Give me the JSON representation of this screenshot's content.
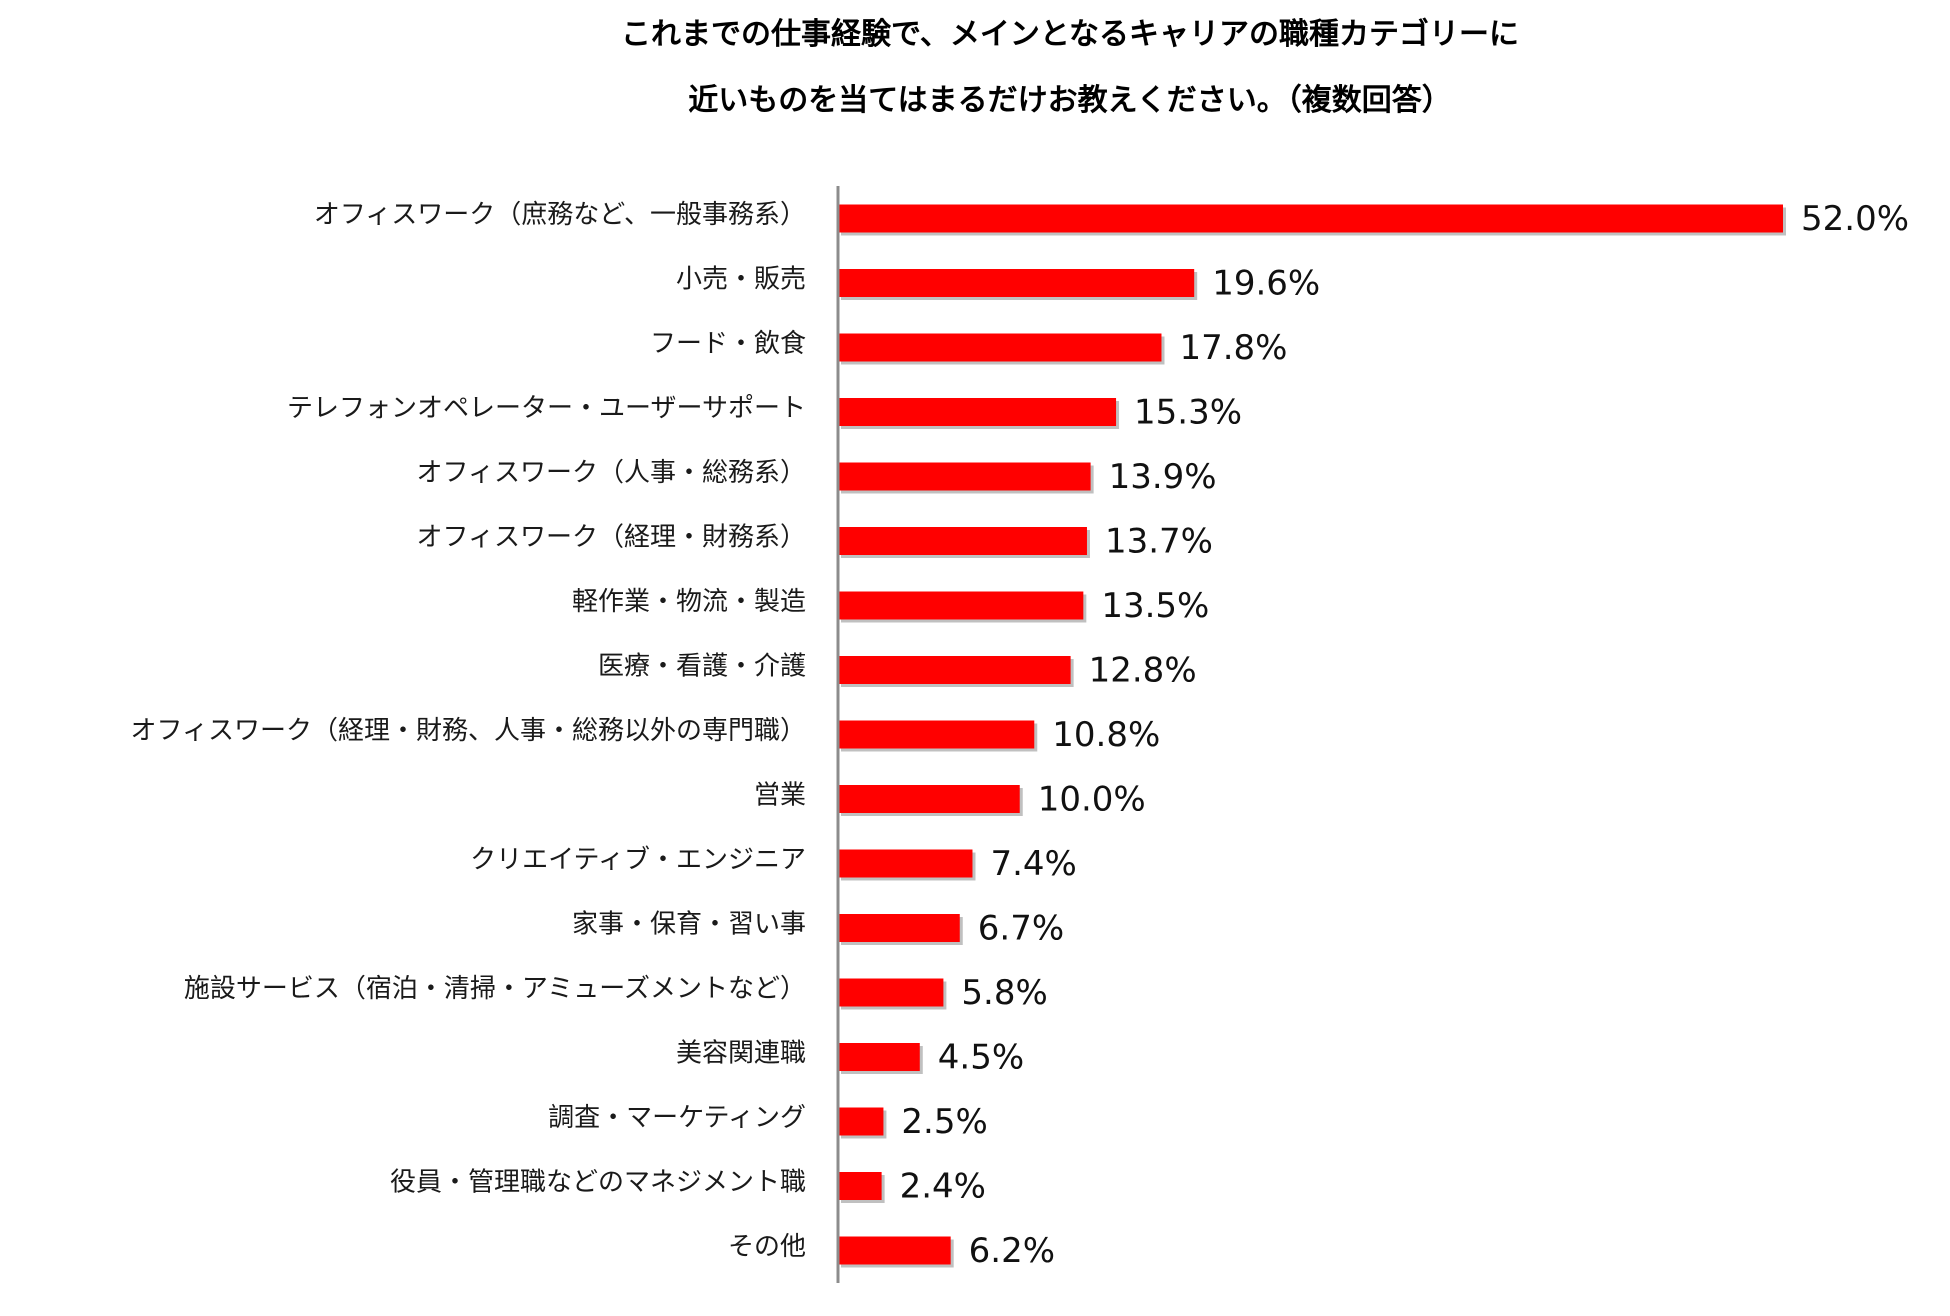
{
  "chart_data": {
    "type": "bar",
    "orientation": "horizontal",
    "title_lines": [
      "これまでの仕事経験で、メインとなるキャリアの職種カテゴリーに",
      "近いものを当てはまるだけお教えください。（複数回答）"
    ],
    "categories": [
      "オフィスワーク（庶務など、一般事務系）",
      "小売・販売",
      "フード・飲食",
      "テレフォンオペレーター・ユーザーサポート",
      "オフィスワーク（人事・総務系）",
      "オフィスワーク（経理・財務系）",
      "軽作業・物流・製造",
      "医療・看護・介護",
      "オフィスワーク（経理・財務、人事・総務以外の専門職）",
      "営業",
      "クリエイティブ・エンジニア",
      "家事・保育・習い事",
      "施設サービス（宿泊・清掃・アミューズメントなど）",
      "美容関連職",
      "調査・マーケティング",
      "役員・管理職などのマネジメント職",
      "その他"
    ],
    "values": [
      52.0,
      19.6,
      17.8,
      15.3,
      13.9,
      13.7,
      13.5,
      12.8,
      10.8,
      10.0,
      7.4,
      6.7,
      5.8,
      4.5,
      2.5,
      2.4,
      6.2
    ],
    "value_labels": [
      "52.0%",
      "19.6%",
      "17.8%",
      "15.3%",
      "13.9%",
      "13.7%",
      "13.5%",
      "12.8%",
      "10.8%",
      "10.0%",
      "7.4%",
      "6.7%",
      "5.8%",
      "4.5%",
      "2.5%",
      "2.4%",
      "6.2%"
    ],
    "bar_color": "#ff0000",
    "bar_shadow_color": "#8c8c8c",
    "axis_color": "#8c8c8c",
    "grid": false,
    "legend": "none",
    "xlim": [
      0,
      52.0
    ]
  }
}
